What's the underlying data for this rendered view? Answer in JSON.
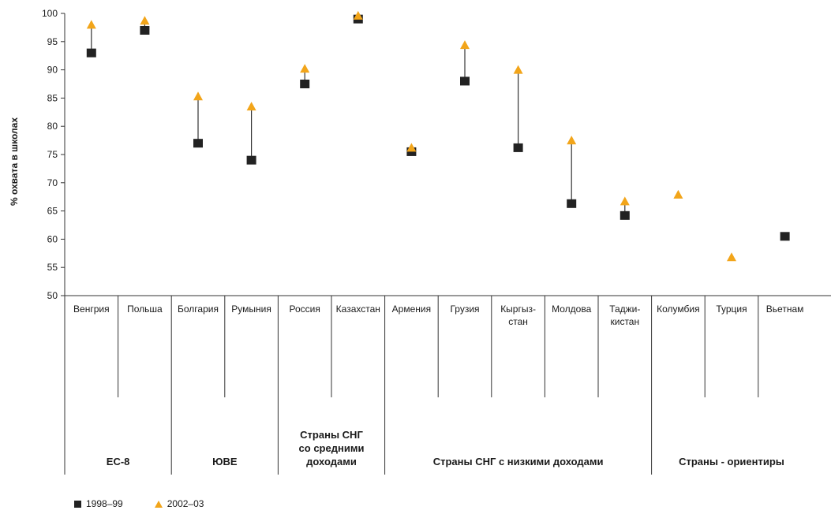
{
  "chart_data": {
    "type": "scatter",
    "ylabel": "% охвата в школах",
    "ylim": [
      50,
      100
    ],
    "yticks": [
      50,
      55,
      60,
      65,
      70,
      75,
      80,
      85,
      90,
      95,
      100
    ],
    "categories": [
      {
        "lines": [
          "Венгрия"
        ]
      },
      {
        "lines": [
          "Польша"
        ]
      },
      {
        "lines": [
          "Болгария"
        ]
      },
      {
        "lines": [
          "Румыния"
        ]
      },
      {
        "lines": [
          "Россия"
        ]
      },
      {
        "lines": [
          "Казахстан"
        ]
      },
      {
        "lines": [
          "Армения"
        ]
      },
      {
        "lines": [
          "Грузия"
        ]
      },
      {
        "lines": [
          "Кыргыз-",
          "стан"
        ]
      },
      {
        "lines": [
          "Молдова"
        ]
      },
      {
        "lines": [
          "Таджи-",
          "кистан"
        ]
      },
      {
        "lines": [
          "Колумбия"
        ]
      },
      {
        "lines": [
          "Турция"
        ]
      },
      {
        "lines": [
          "Вьетнам"
        ]
      }
    ],
    "groups": [
      {
        "lines": [
          "ЕС-8"
        ],
        "span": 2
      },
      {
        "lines": [
          "ЮВЕ"
        ],
        "span": 2
      },
      {
        "lines": [
          "Страны СНГ",
          "со средними",
          "доходами"
        ],
        "span": 2
      },
      {
        "lines": [
          "Страны СНГ с низкими доходами"
        ],
        "span": 5
      },
      {
        "lines": [
          "Страны - ориентиры"
        ],
        "span": 3
      }
    ],
    "series": [
      {
        "name": "1998–99",
        "marker": "square",
        "color": "#222222",
        "values": [
          93,
          97,
          77,
          74,
          87.5,
          99,
          75.5,
          88,
          76.2,
          66.3,
          64.2,
          null,
          null,
          60.5
        ]
      },
      {
        "name": "2002–03",
        "marker": "triangle",
        "color": "#f2a51a",
        "values": [
          98,
          98.7,
          85.3,
          83.5,
          90.2,
          99.6,
          76.2,
          94.4,
          90,
          77.5,
          66.7,
          67.9,
          56.8,
          null
        ]
      }
    ],
    "connector_color": "#333333",
    "legend_position": "bottom-left",
    "grid": false
  }
}
